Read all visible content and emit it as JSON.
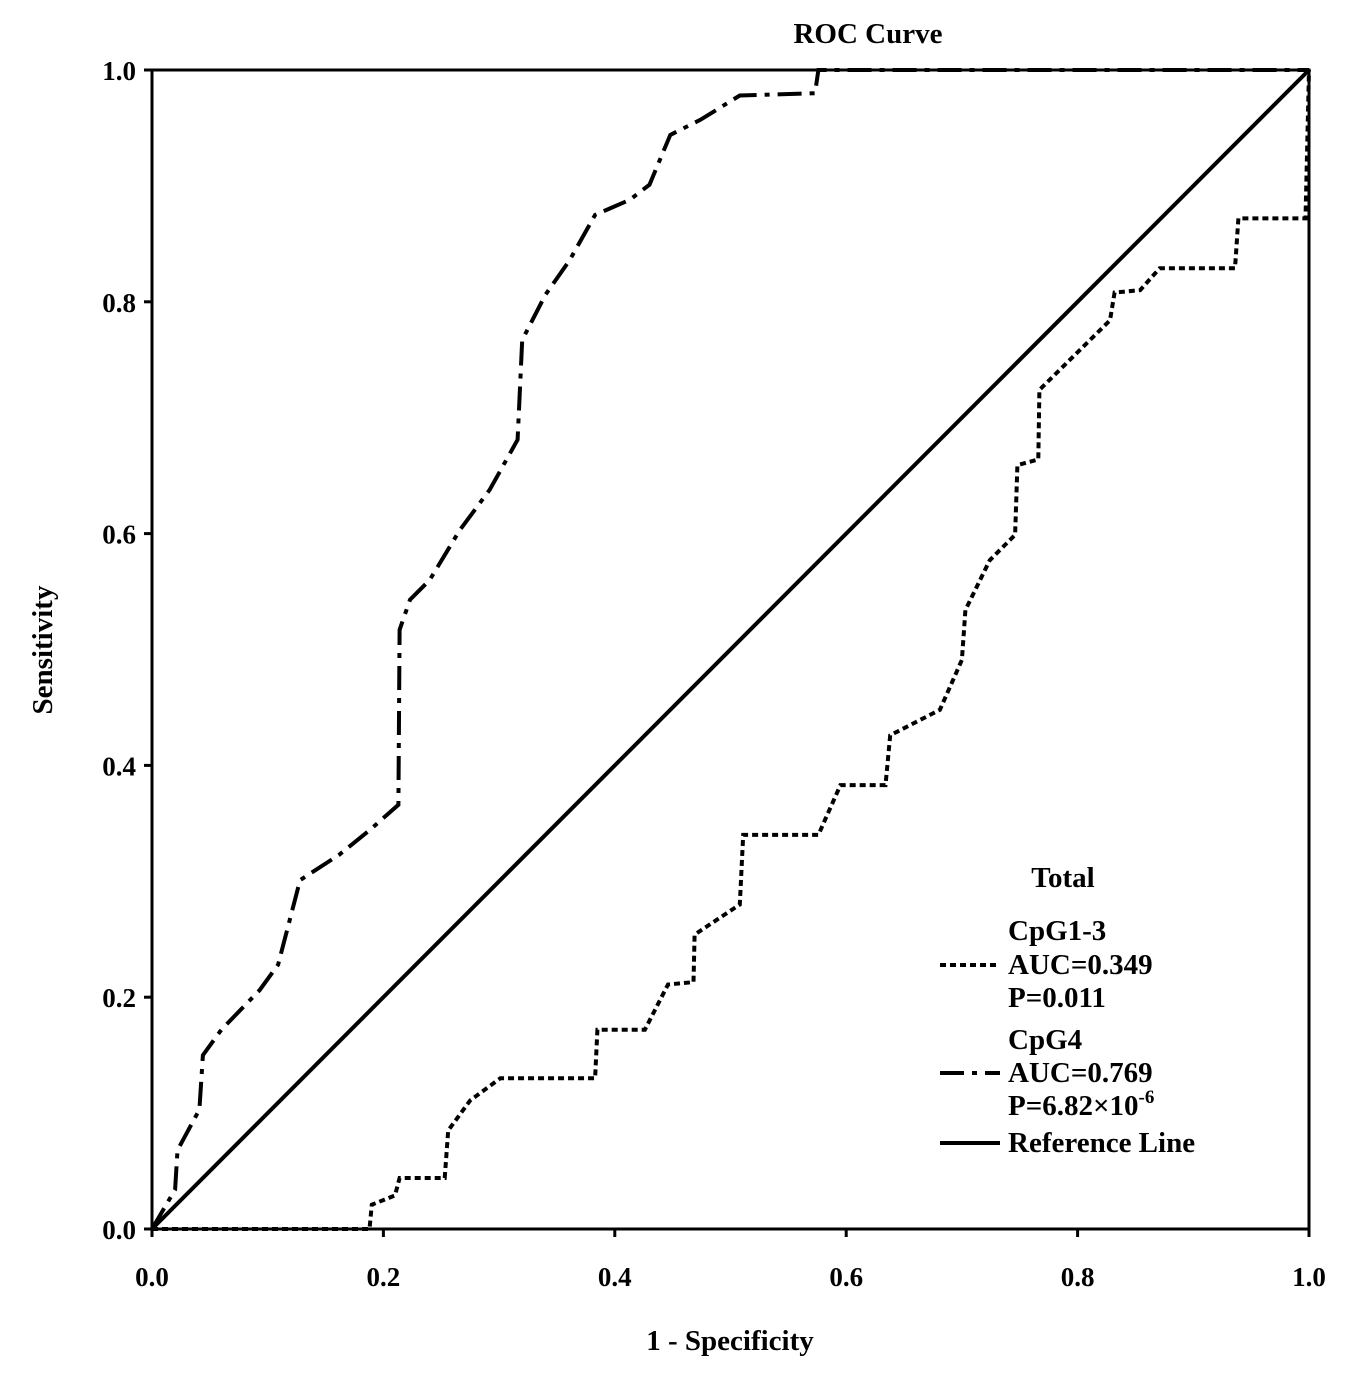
{
  "chart_data": {
    "type": "line",
    "title": "ROC Curve",
    "xlabel": "1 - Specificity",
    "ylabel": "Sensitivity",
    "xlim": [
      0,
      1
    ],
    "ylim": [
      0,
      1
    ],
    "xticks": [
      "0.0",
      "0.2",
      "0.4",
      "0.6",
      "0.8",
      "1.0"
    ],
    "yticks": [
      "0.0",
      "0.2",
      "0.4",
      "0.6",
      "0.8",
      "1.0"
    ],
    "grid": false,
    "legend": {
      "title": "Total",
      "placement": "bottom-right",
      "entries": [
        {
          "lines": [
            "CpG1-3",
            "AUC=0.349",
            "P=0.011"
          ]
        },
        {
          "lines": [
            "CpG4",
            "AUC=0.769",
            "P=6.82×10",
            "-6"
          ]
        },
        {
          "lines": [
            "Reference Line"
          ]
        }
      ]
    },
    "series": [
      {
        "name": "CpG1-3",
        "style": "dotted",
        "auc": 0.349,
        "p": "0.011",
        "x": [
          0,
          0.188,
          0.19,
          0.21,
          0.214,
          0.253,
          0.256,
          0.275,
          0.301,
          0.383,
          0.385,
          0.426,
          0.446,
          0.468,
          0.469,
          0.508,
          0.511,
          0.576,
          0.595,
          0.634,
          0.638,
          0.681,
          0.7,
          0.703,
          0.724,
          0.746,
          0.748,
          0.766,
          0.767,
          0.828,
          0.832,
          0.854,
          0.871,
          0.936,
          0.939,
          0.997,
          1
        ],
        "y": [
          0,
          0,
          0.021,
          0.029,
          0.044,
          0.044,
          0.085,
          0.111,
          0.13,
          0.13,
          0.172,
          0.172,
          0.211,
          0.213,
          0.254,
          0.28,
          0.34,
          0.34,
          0.383,
          0.383,
          0.426,
          0.448,
          0.491,
          0.534,
          0.577,
          0.599,
          0.659,
          0.664,
          0.724,
          0.784,
          0.808,
          0.81,
          0.829,
          0.829,
          0.872,
          0.872,
          1
        ]
      },
      {
        "name": "CpG4",
        "style": "dash-dot",
        "auc": 0.769,
        "p": "6.82e-6",
        "x": [
          0,
          0.02,
          0.022,
          0.041,
          0.044,
          0.06,
          0.093,
          0.109,
          0.128,
          0.162,
          0.188,
          0.213,
          0.214,
          0.223,
          0.24,
          0.266,
          0.292,
          0.316,
          0.32,
          0.34,
          0.361,
          0.383,
          0.413,
          0.43,
          0.448,
          0.474,
          0.508,
          0.573,
          0.576,
          1
        ],
        "y": [
          0,
          0.034,
          0.068,
          0.103,
          0.15,
          0.172,
          0.206,
          0.228,
          0.301,
          0.323,
          0.344,
          0.366,
          0.517,
          0.543,
          0.56,
          0.603,
          0.638,
          0.681,
          0.767,
          0.806,
          0.836,
          0.875,
          0.888,
          0.901,
          0.944,
          0.957,
          0.978,
          0.98,
          1,
          1
        ]
      },
      {
        "name": "Reference Line",
        "style": "solid",
        "x": [
          0,
          1
        ],
        "y": [
          0,
          1
        ]
      }
    ]
  }
}
